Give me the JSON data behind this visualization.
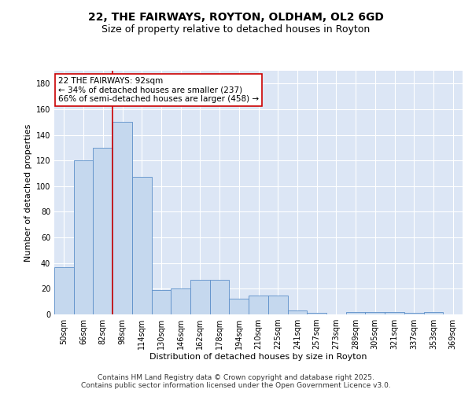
{
  "title_line1": "22, THE FAIRWAYS, ROYTON, OLDHAM, OL2 6GD",
  "title_line2": "Size of property relative to detached houses in Royton",
  "xlabel": "Distribution of detached houses by size in Royton",
  "ylabel": "Number of detached properties",
  "categories": [
    "50sqm",
    "66sqm",
    "82sqm",
    "98sqm",
    "114sqm",
    "130sqm",
    "146sqm",
    "162sqm",
    "178sqm",
    "194sqm",
    "210sqm",
    "225sqm",
    "241sqm",
    "257sqm",
    "273sqm",
    "289sqm",
    "305sqm",
    "321sqm",
    "337sqm",
    "353sqm",
    "369sqm"
  ],
  "values": [
    37,
    120,
    130,
    150,
    107,
    19,
    20,
    27,
    27,
    12,
    15,
    15,
    3,
    1,
    0,
    2,
    2,
    2,
    1,
    2,
    0
  ],
  "bar_color": "#c5d8ee",
  "bar_edge_color": "#5b8fc9",
  "background_color": "#dce6f5",
  "grid_color": "#ffffff",
  "vline_x_index": 2.5,
  "vline_color": "#cc0000",
  "annotation_text": "22 THE FAIRWAYS: 92sqm\n← 34% of detached houses are smaller (237)\n66% of semi-detached houses are larger (458) →",
  "annotation_box_color": "#ffffff",
  "annotation_box_edge": "#cc0000",
  "footer_text": "Contains HM Land Registry data © Crown copyright and database right 2025.\nContains public sector information licensed under the Open Government Licence v3.0.",
  "ylim": [
    0,
    190
  ],
  "yticks": [
    0,
    20,
    40,
    60,
    80,
    100,
    120,
    140,
    160,
    180
  ],
  "title_fontsize": 10,
  "subtitle_fontsize": 9,
  "axis_label_fontsize": 8,
  "tick_fontsize": 7,
  "annotation_fontsize": 7.5,
  "footer_fontsize": 6.5
}
